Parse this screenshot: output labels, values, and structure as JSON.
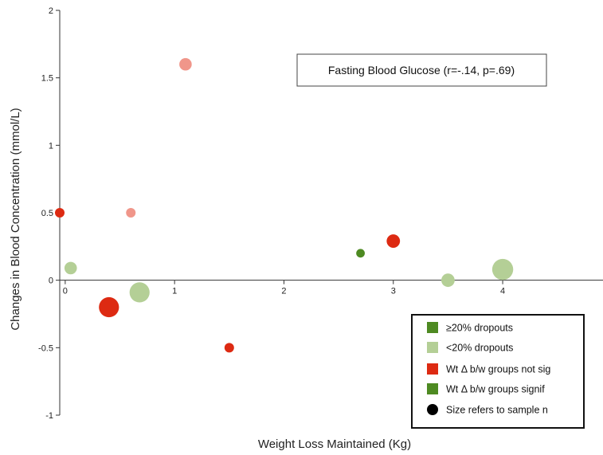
{
  "chart_data": {
    "type": "scatter",
    "title": "Fasting Blood Glucose (r=-.14, p=.69)",
    "xlabel": "Weight Loss Maintained (Kg)",
    "ylabel": "Changes in Blood Concentration (mmol/L)",
    "xlim": [
      -0.05,
      4.95
    ],
    "ylim": [
      -1,
      2
    ],
    "x_ticks": [
      0,
      1,
      2,
      3,
      4
    ],
    "x_tick_labels": [
      "0",
      "1",
      "2",
      "3",
      "4"
    ],
    "y_ticks": [
      -1,
      -0.5,
      0,
      0.5,
      1,
      1.5,
      2
    ],
    "y_tick_labels": [
      "-1",
      "-0.5",
      "0",
      "0.5",
      "1",
      "1.5",
      "2"
    ],
    "grid": false,
    "legend": {
      "placement": "bottom-right",
      "entries": [
        {
          "label": "≥20% dropouts",
          "marker": "square",
          "color": "#4e8a22"
        },
        {
          "label": "<20% dropouts",
          "marker": "square",
          "color": "#b4cf96"
        },
        {
          "label": "Wt Δ b/w groups not sig",
          "marker": "square",
          "color": "#dd2a12"
        },
        {
          "label": "Wt Δ b/w groups signif",
          "marker": "square",
          "color": "#4e8a22"
        },
        {
          "label": "Size refers to sample n",
          "marker": "circle",
          "color": "#000000"
        }
      ]
    },
    "points": [
      {
        "x": -0.05,
        "y": 0.5,
        "size": 1,
        "color": "#dd2a12"
      },
      {
        "x": 0.05,
        "y": 0.09,
        "size": 1.3,
        "color": "#b4cf96"
      },
      {
        "x": 0.4,
        "y": -0.2,
        "size": 2.1,
        "color": "#dd2a12"
      },
      {
        "x": 0.6,
        "y": 0.5,
        "size": 1,
        "color": "#f0968a"
      },
      {
        "x": 0.68,
        "y": -0.09,
        "size": 2.1,
        "color": "#b4cf96"
      },
      {
        "x": 1.1,
        "y": 1.6,
        "size": 1.3,
        "color": "#f0968a"
      },
      {
        "x": 1.5,
        "y": -0.5,
        "size": 1,
        "color": "#dd2a12"
      },
      {
        "x": 2.7,
        "y": 0.2,
        "size": 0.9,
        "color": "#4e8a22"
      },
      {
        "x": 3.0,
        "y": 0.29,
        "size": 1.4,
        "color": "#dd2a12"
      },
      {
        "x": 3.5,
        "y": 0.0,
        "size": 1.4,
        "color": "#b4cf96"
      },
      {
        "x": 4.0,
        "y": 0.08,
        "size": 2.2,
        "color": "#b4cf96"
      }
    ]
  }
}
